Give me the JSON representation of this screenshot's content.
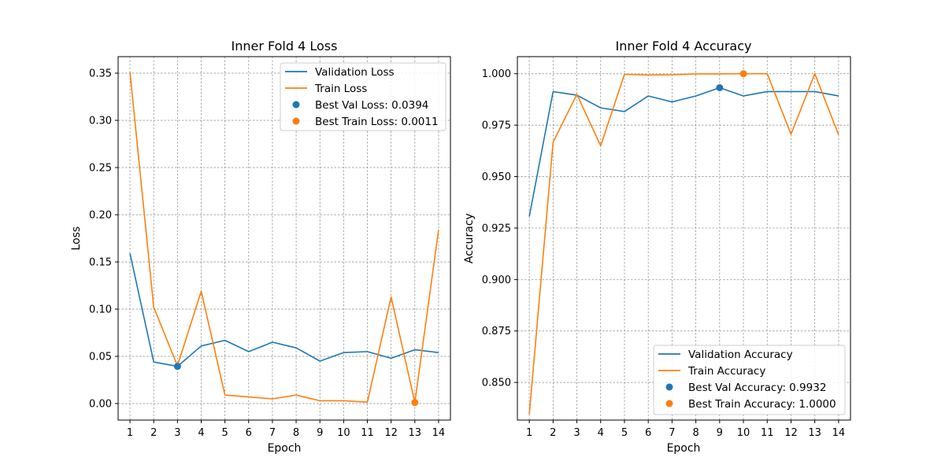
{
  "colors": {
    "validation": "#1f77b4",
    "train": "#ff7f0e"
  },
  "chart_data": [
    {
      "type": "line",
      "title": "Inner Fold 4 Loss",
      "xlabel": "Epoch",
      "ylabel": "Loss",
      "x": [
        1,
        2,
        3,
        4,
        5,
        6,
        7,
        8,
        9,
        10,
        11,
        12,
        13,
        14
      ],
      "xlim": [
        0.5,
        14.5
      ],
      "ylim": [
        -0.0175,
        0.3675
      ],
      "yticks": [
        0.0,
        0.05,
        0.1,
        0.15,
        0.2,
        0.25,
        0.3,
        0.35
      ],
      "ytick_labels": [
        "0.00",
        "0.05",
        "0.10",
        "0.15",
        "0.20",
        "0.25",
        "0.30",
        "0.35"
      ],
      "grid": true,
      "legend_position": "upper right",
      "series": [
        {
          "name": "Validation Loss",
          "color": "#1f77b4",
          "values": [
            0.159,
            0.044,
            0.0394,
            0.061,
            0.067,
            0.055,
            0.065,
            0.059,
            0.045,
            0.054,
            0.055,
            0.048,
            0.057,
            0.054
          ]
        },
        {
          "name": "Train Loss",
          "color": "#ff7f0e",
          "values": [
            0.351,
            0.102,
            0.04,
            0.119,
            0.009,
            0.007,
            0.005,
            0.009,
            0.003,
            0.003,
            0.0015,
            0.113,
            0.0011,
            0.184
          ]
        }
      ],
      "markers": [
        {
          "name": "Best Val Loss: 0.0394",
          "color": "#1f77b4",
          "x": 3,
          "y": 0.0394
        },
        {
          "name": "Best Train Loss: 0.0011",
          "color": "#ff7f0e",
          "x": 13,
          "y": 0.0011
        }
      ]
    },
    {
      "type": "line",
      "title": "Inner Fold 4 Accuracy",
      "xlabel": "Epoch",
      "ylabel": "Accuracy",
      "x": [
        1,
        2,
        3,
        4,
        5,
        6,
        7,
        8,
        9,
        10,
        11,
        12,
        13,
        14
      ],
      "xlim": [
        0.5,
        14.5
      ],
      "ylim": [
        0.8317,
        1.0083
      ],
      "yticks": [
        0.85,
        0.875,
        0.9,
        0.925,
        0.95,
        0.975,
        1.0
      ],
      "ytick_labels": [
        "0.850",
        "0.875",
        "0.900",
        "0.925",
        "0.950",
        "0.975",
        "1.000"
      ],
      "grid": true,
      "legend_position": "lower right",
      "series": [
        {
          "name": "Validation Accuracy",
          "color": "#1f77b4",
          "values": [
            0.9306,
            0.9913,
            0.9896,
            0.9834,
            0.9816,
            0.9892,
            0.9863,
            0.9892,
            0.9932,
            0.9892,
            0.9913,
            0.9913,
            0.9913,
            0.9892
          ]
        },
        {
          "name": "Train Accuracy",
          "color": "#ff7f0e",
          "values": [
            0.8345,
            0.9667,
            0.99,
            0.965,
            0.9997,
            0.9994,
            0.9995,
            0.9999,
            0.9999,
            1.0,
            1.0,
            0.9706,
            1.0,
            0.9703
          ]
        }
      ],
      "markers": [
        {
          "name": "Best Val Accuracy: 0.9932",
          "color": "#1f77b4",
          "x": 9,
          "y": 0.9932
        },
        {
          "name": "Best Train Accuracy: 1.0000",
          "color": "#ff7f0e",
          "x": 10,
          "y": 1.0
        }
      ]
    }
  ]
}
